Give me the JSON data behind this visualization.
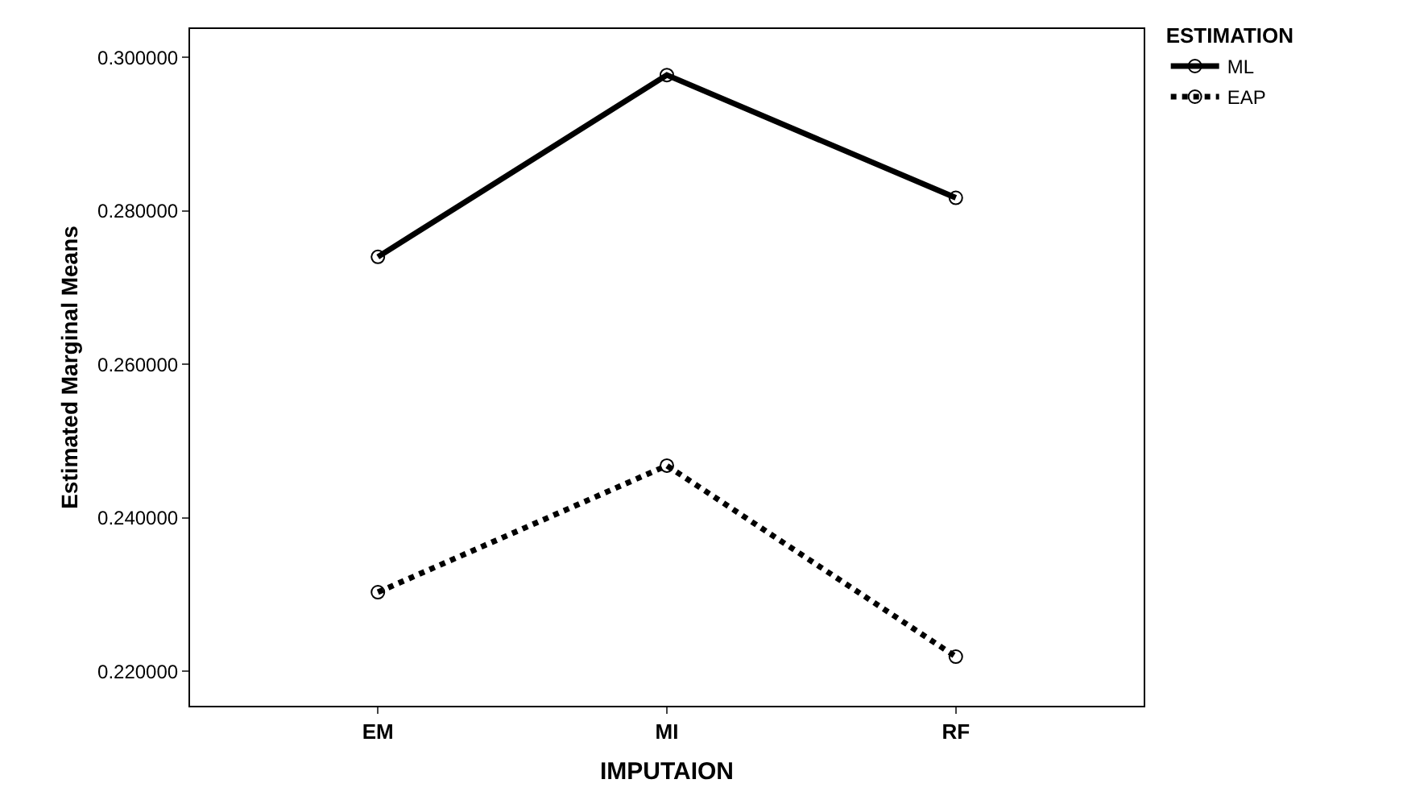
{
  "chart_data": {
    "type": "line",
    "xlabel": "IMPUTAION",
    "ylabel": "Estimated Marginal Means",
    "legend_title": "ESTIMATION",
    "categories": [
      "EM",
      "MI",
      "RF"
    ],
    "series": [
      {
        "name": "ML",
        "color": "#000000",
        "line_style": "solid",
        "values": [
          0.274,
          0.2977,
          0.2817
        ]
      },
      {
        "name": "EAP",
        "color": "#000000",
        "line_style": "dotted",
        "values": [
          0.2303,
          0.2468,
          0.2219
        ]
      }
    ],
    "ylim": [
      0.2155,
      0.3037
    ],
    "yticks": [
      {
        "value": 0.22,
        "label": "0.220000"
      },
      {
        "value": 0.24,
        "label": "0.240000"
      },
      {
        "value": 0.26,
        "label": "0.260000"
      },
      {
        "value": 0.28,
        "label": "0.280000"
      },
      {
        "value": 0.3,
        "label": "0.300000"
      }
    ],
    "marker": "circle",
    "grid": false,
    "legend": "top right"
  }
}
